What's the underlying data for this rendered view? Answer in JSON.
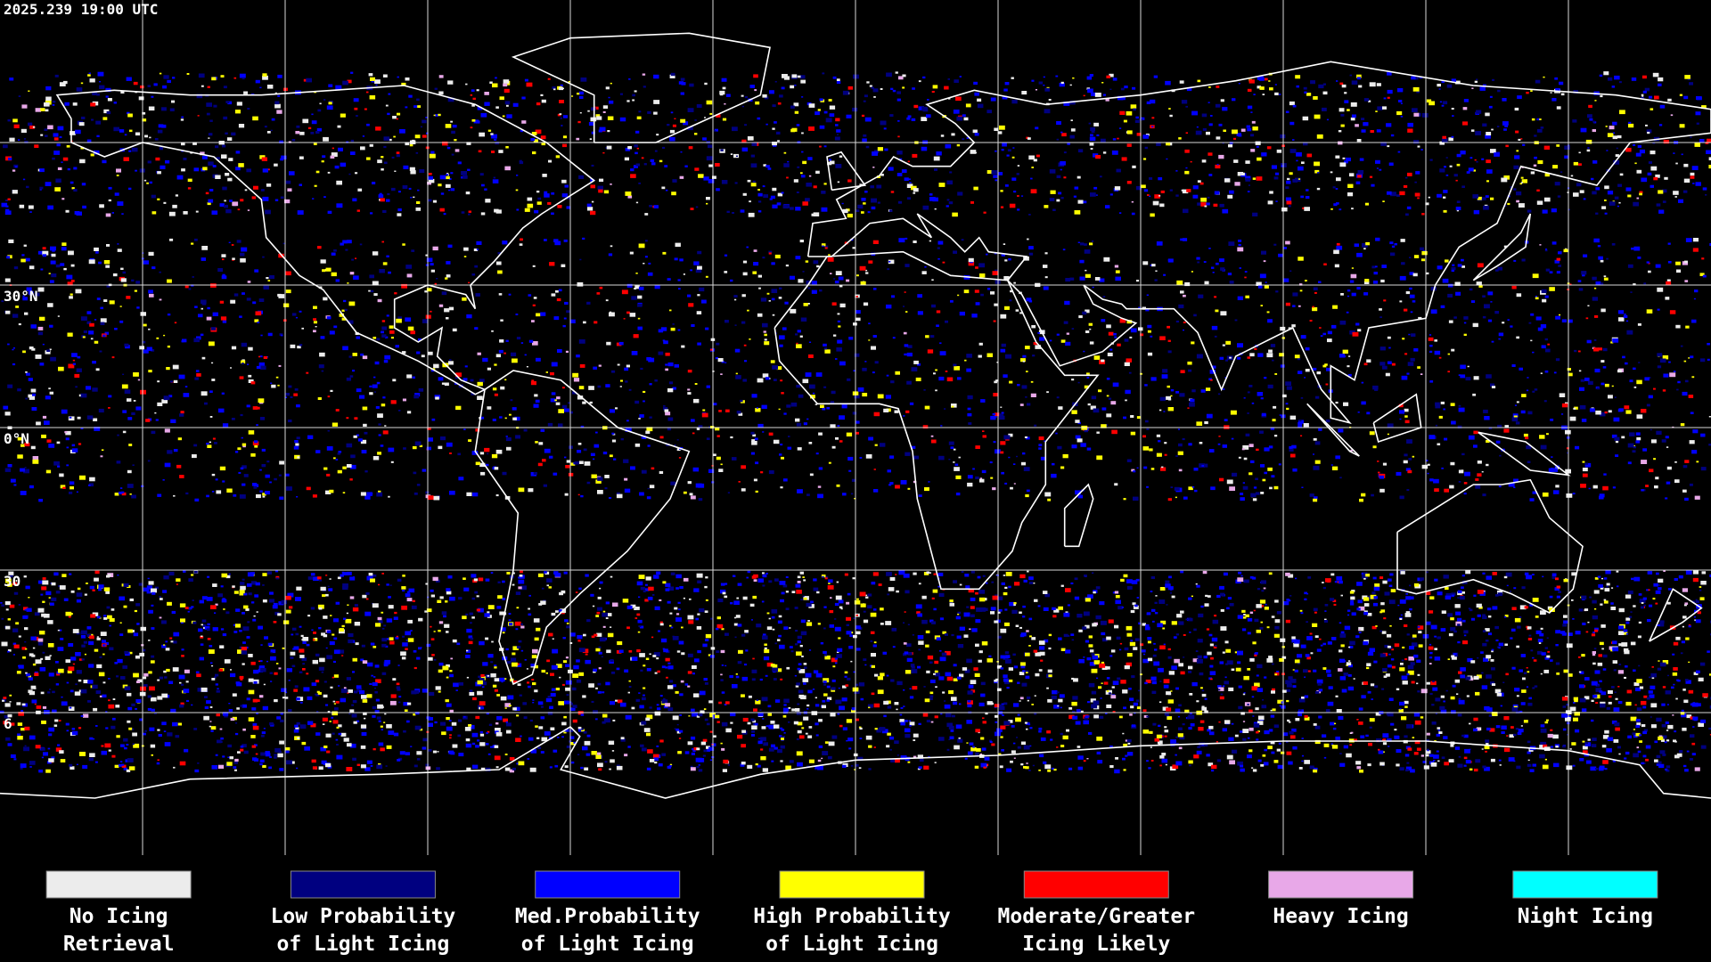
{
  "map": {
    "timestamp": "2025.239 19:00 UTC",
    "latitude_labels": [
      "30°N",
      "0°N",
      "30",
      "6"
    ]
  },
  "legend": [
    {
      "label": [
        "No Icing",
        "Retrieval"
      ],
      "color": "#ececec"
    },
    {
      "label": [
        "Low Probability",
        "of Light Icing"
      ],
      "color": "#000080"
    },
    {
      "label": [
        "Med.Probability",
        "of Light Icing"
      ],
      "color": "#0000ff"
    },
    {
      "label": [
        "High Probability",
        "of Light Icing"
      ],
      "color": "#ffff00"
    },
    {
      "label": [
        "Moderate/Greater",
        "Icing Likely"
      ],
      "color": "#ff0000"
    },
    {
      "label": [
        "Heavy Icing",
        ""
      ],
      "color": "#e8a8e8"
    },
    {
      "label": [
        "Night Icing",
        ""
      ],
      "color": "#00ffff"
    }
  ]
}
